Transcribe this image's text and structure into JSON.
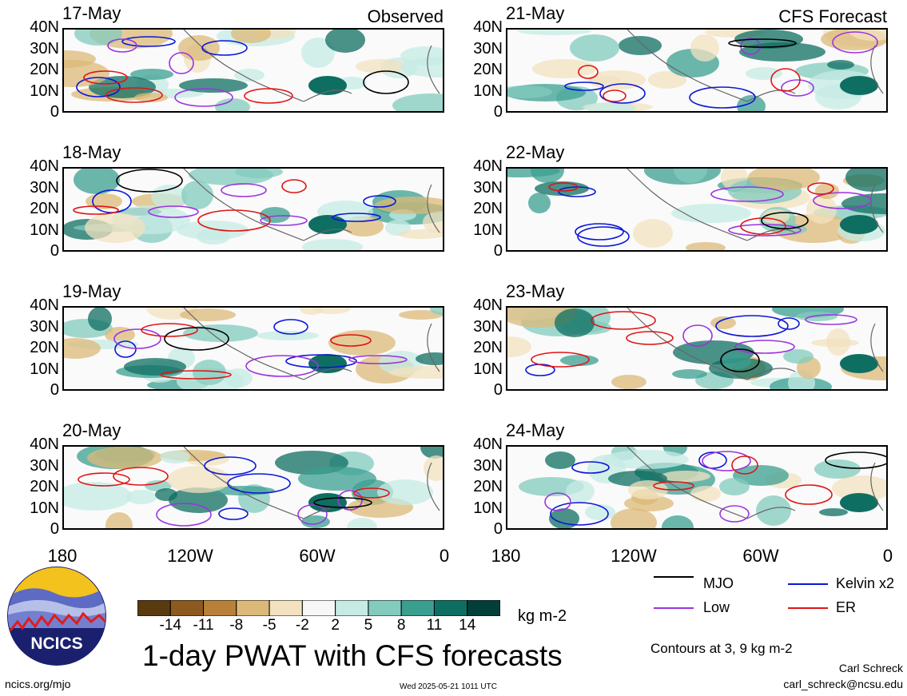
{
  "left_column_label": "Observed",
  "right_column_label": "CFS Forecast",
  "panels": {
    "left": [
      "17-May",
      "18-May",
      "19-May",
      "20-May"
    ],
    "right": [
      "21-May",
      "22-May",
      "23-May",
      "24-May"
    ]
  },
  "y_ticks": [
    "40N",
    "30N",
    "20N",
    "10N",
    "0"
  ],
  "x_ticks": [
    "180",
    "120W",
    "60W",
    "0"
  ],
  "colorbar": {
    "labels": [
      "-14",
      "-11",
      "-8",
      "-5",
      "-2",
      "2",
      "5",
      "8",
      "11",
      "14"
    ],
    "unit": "kg m-2",
    "colors": [
      "#5a3b10",
      "#8c5a1e",
      "#b9803a",
      "#dcb978",
      "#f2e2bf",
      "#f7f7f7",
      "#c6ebe4",
      "#82cbbd",
      "#3b9f90",
      "#0f6e62",
      "#033f38"
    ]
  },
  "legend": {
    "mjo": {
      "label": "MJO",
      "color": "#000000"
    },
    "kelvin": {
      "label": "Kelvin x2",
      "color": "#0b16d8"
    },
    "low": {
      "label": "Low",
      "color": "#9b34e0"
    },
    "er": {
      "label": "ER",
      "color": "#e01414"
    }
  },
  "contours_note": "Contours at 3, 9 kg m-2",
  "title": "1-day PWAT with CFS forecasts",
  "logo_text": "NCICS",
  "footer": {
    "url": "ncics.org/mjo",
    "timestamp": "Wed 2025-05-21 1011 UTC",
    "author": "Carl Schreck",
    "email": "carl_schreck@ncsu.edu"
  }
}
